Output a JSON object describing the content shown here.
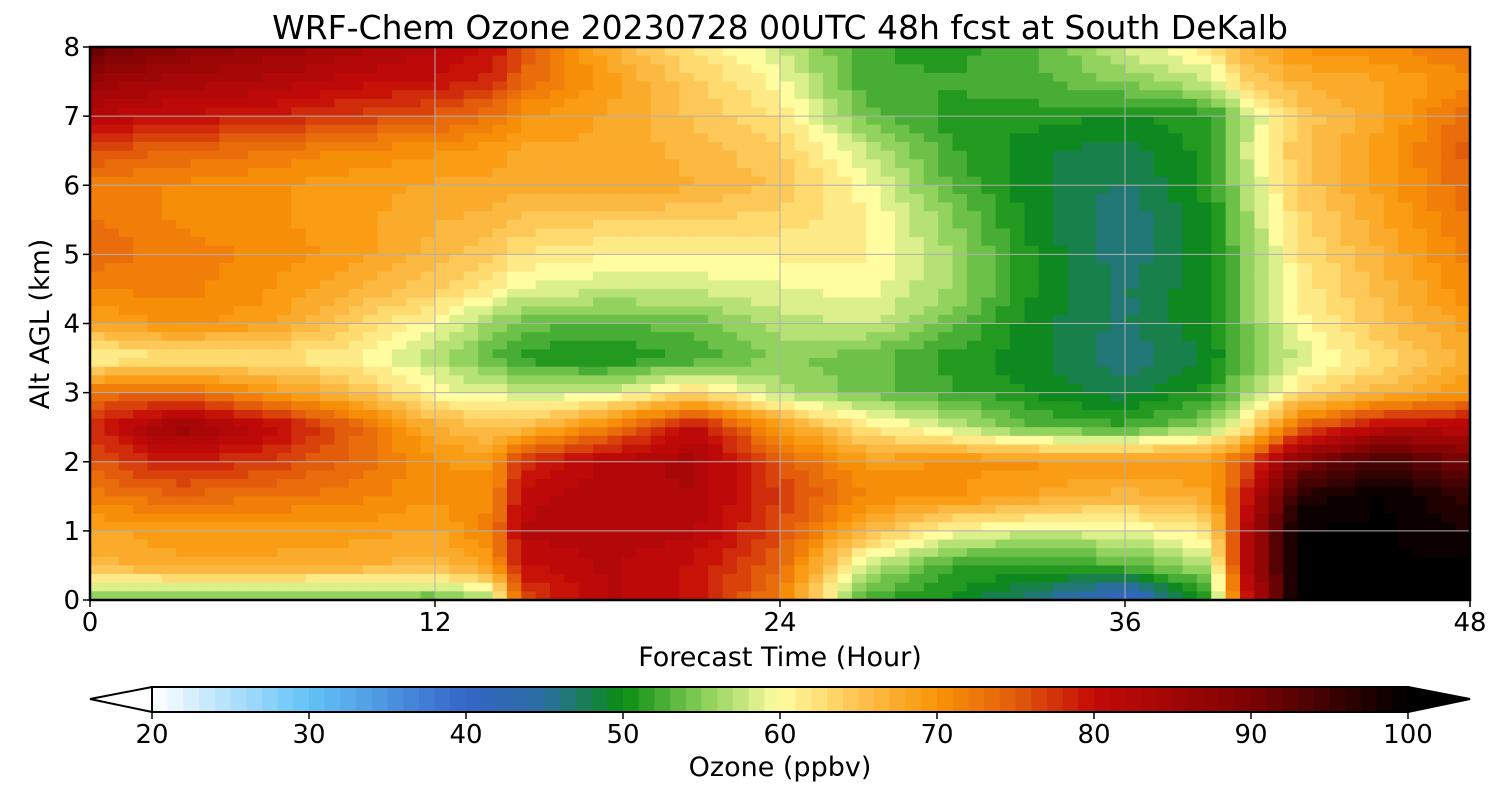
{
  "chart_data": {
    "type": "heatmap",
    "title": "WRF-Chem Ozone  20230728 00UTC 48h fcst at South DeKalb",
    "xlabel": "Forecast Time (Hour)",
    "ylabel": "Alt AGL (km)",
    "xlim": [
      0,
      48
    ],
    "ylim": [
      0,
      8
    ],
    "xticks": [
      0,
      12,
      24,
      36,
      48
    ],
    "yticks": [
      0,
      1,
      2,
      3,
      4,
      5,
      6,
      7,
      8
    ],
    "grid": true,
    "colorbar": {
      "label": "Ozone  (ppbv)",
      "min": 20,
      "max": 100,
      "ticks": [
        20,
        30,
        40,
        50,
        60,
        70,
        80,
        90,
        100
      ],
      "extend": "both",
      "stops": [
        {
          "v": 20,
          "c": "#ffffff"
        },
        {
          "v": 30,
          "c": "#63c3f7"
        },
        {
          "v": 40,
          "c": "#3565c8"
        },
        {
          "v": 45,
          "c": "#2a6ea0"
        },
        {
          "v": 50,
          "c": "#0a8c12"
        },
        {
          "v": 55,
          "c": "#86ce57"
        },
        {
          "v": 60,
          "c": "#fffda0"
        },
        {
          "v": 65,
          "c": "#fdc24f"
        },
        {
          "v": 70,
          "c": "#f99407"
        },
        {
          "v": 75,
          "c": "#e25c0c"
        },
        {
          "v": 80,
          "c": "#c40a08"
        },
        {
          "v": 90,
          "c": "#7c0303"
        },
        {
          "v": 100,
          "c": "#000000"
        }
      ]
    },
    "x": [
      0,
      3,
      6,
      9,
      12,
      14,
      15,
      18,
      21,
      24,
      27,
      30,
      33,
      36,
      39,
      40,
      42,
      45,
      48
    ],
    "y": [
      0,
      0.5,
      1,
      1.5,
      2,
      2.5,
      3,
      3.5,
      4,
      4.5,
      5,
      5.5,
      6,
      6.5,
      7,
      7.5,
      8
    ],
    "z": [
      [
        54,
        53,
        53,
        54,
        53,
        56,
        76,
        82,
        80,
        72,
        52,
        50,
        46,
        40,
        51,
        76,
        100,
        100,
        100
      ],
      [
        66,
        68,
        68,
        67,
        66,
        69,
        80,
        82,
        80,
        74,
        58,
        52,
        51,
        53,
        57,
        80,
        100,
        100,
        100
      ],
      [
        68,
        69,
        69,
        69,
        68,
        72,
        82,
        83,
        82,
        76,
        66,
        60,
        58,
        59,
        62,
        80,
        100,
        100,
        98
      ],
      [
        72,
        74,
        73,
        72,
        70,
        71,
        81,
        83,
        83,
        77,
        71,
        70,
        68,
        66,
        68,
        77,
        97,
        100,
        96
      ],
      [
        75,
        79,
        77,
        74,
        70,
        69,
        78,
        82,
        84,
        75,
        69,
        70,
        70,
        70,
        70,
        74,
        89,
        95,
        90
      ],
      [
        78,
        86,
        82,
        75,
        67,
        65,
        65,
        72,
        81,
        69,
        62,
        58,
        53,
        52,
        56,
        60,
        74,
        82,
        82
      ],
      [
        73,
        74,
        70,
        66,
        60,
        59,
        58,
        58,
        63,
        57,
        54,
        52,
        50,
        48,
        51,
        55,
        62,
        66,
        70
      ],
      [
        60,
        62,
        62,
        61,
        57,
        53,
        51,
        50,
        52,
        55,
        54,
        51,
        49,
        46,
        49,
        53,
        58,
        63,
        67
      ],
      [
        68,
        70,
        69,
        64,
        60,
        56,
        54,
        53,
        54,
        57,
        58,
        54,
        49,
        47,
        50,
        54,
        60,
        65,
        69
      ],
      [
        71,
        72,
        70,
        67,
        64,
        61,
        59,
        58,
        58,
        59,
        60,
        56,
        50,
        47,
        50,
        54,
        61,
        66,
        71
      ],
      [
        74,
        72,
        71,
        69,
        66,
        64,
        62,
        61,
        61,
        61,
        61,
        56,
        50,
        46,
        50,
        54,
        62,
        67,
        72
      ],
      [
        73,
        71,
        70,
        69,
        67,
        66,
        65,
        64,
        64,
        63,
        61,
        55,
        49,
        46,
        50,
        55,
        63,
        68,
        73
      ],
      [
        72,
        71,
        70,
        69,
        68,
        68,
        67,
        68,
        67,
        65,
        60,
        53,
        49,
        47,
        51,
        56,
        64,
        69,
        74
      ],
      [
        76,
        74,
        73,
        71,
        70,
        69,
        68,
        68,
        66,
        64,
        58,
        52,
        49,
        48,
        51,
        57,
        65,
        69,
        75
      ],
      [
        82,
        80,
        79,
        77,
        75,
        73,
        70,
        68,
        65,
        62,
        54,
        51,
        51,
        50,
        51,
        56,
        64,
        68,
        74
      ],
      [
        86,
        84,
        83,
        81,
        80,
        78,
        74,
        69,
        64,
        60,
        52,
        52,
        53,
        55,
        58,
        63,
        67,
        68,
        71
      ],
      [
        92,
        88,
        86,
        84,
        82,
        80,
        76,
        67,
        62,
        58,
        52,
        51,
        53,
        58,
        62,
        66,
        70,
        71,
        73
      ]
    ]
  }
}
